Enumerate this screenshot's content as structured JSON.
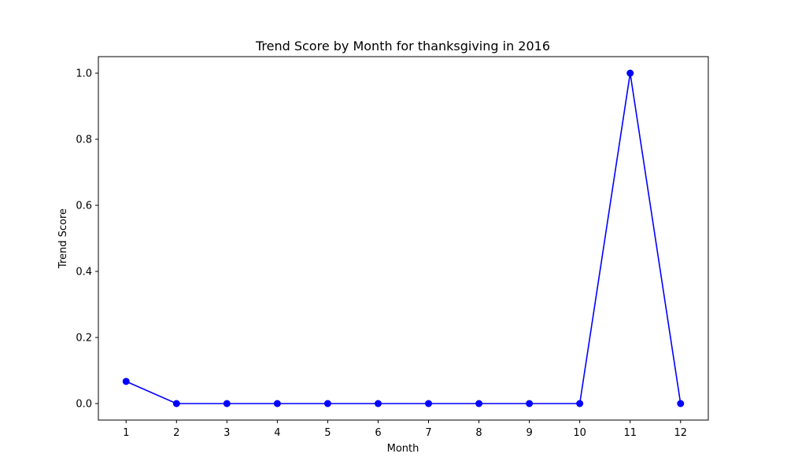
{
  "chart_data": {
    "type": "line",
    "title": "Trend Score by Month for thanksgiving in 2016",
    "xlabel": "Month",
    "ylabel": "Trend Score",
    "x": [
      1,
      2,
      3,
      4,
      5,
      6,
      7,
      8,
      9,
      10,
      11,
      12
    ],
    "series": [
      {
        "values": [
          0.067,
          0,
          0,
          0,
          0,
          0,
          0,
          0,
          0,
          0,
          1.0,
          0
        ],
        "color": "#0000ff"
      }
    ],
    "xlim": [
      0.45,
      12.55
    ],
    "ylim": [
      -0.05,
      1.05
    ],
    "xticks": [
      "1",
      "2",
      "3",
      "4",
      "5",
      "6",
      "7",
      "8",
      "9",
      "10",
      "11",
      "12"
    ],
    "yticks": [
      "0.0",
      "0.2",
      "0.4",
      "0.6",
      "0.8",
      "1.0"
    ],
    "ytick_values": [
      0,
      0.2,
      0.4,
      0.6,
      0.8,
      1.0
    ],
    "grid": false,
    "marker": "circle"
  }
}
